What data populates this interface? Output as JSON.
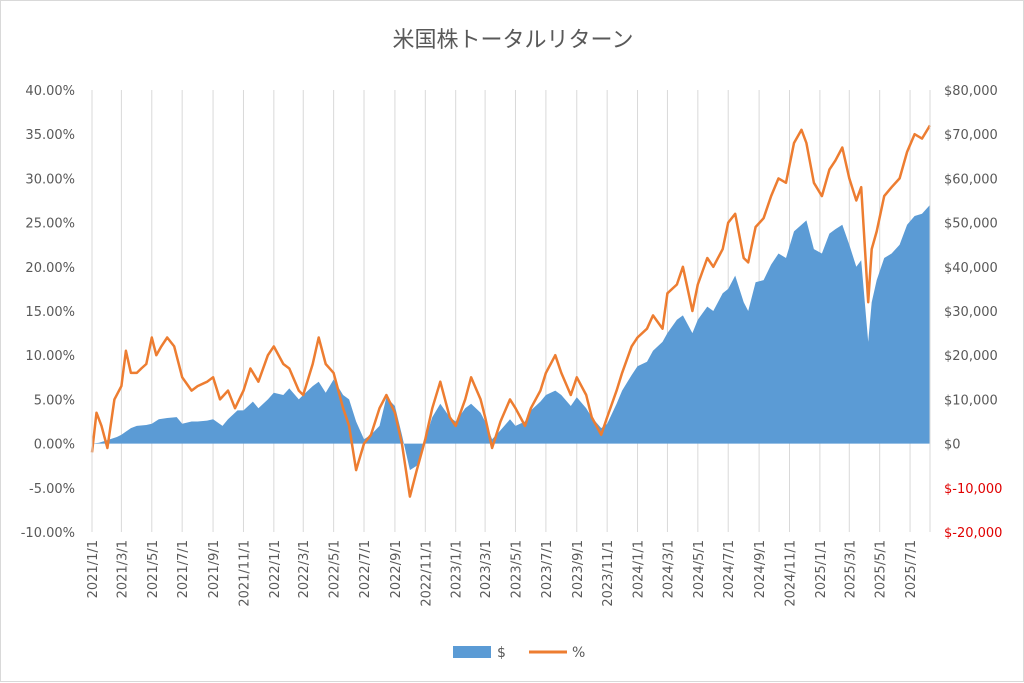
{
  "chart_data": {
    "type": "area+line",
    "title": "米国株トータルリターン",
    "left_axis": {
      "unit": "percent",
      "range": [
        -10,
        40
      ],
      "ticks": [
        -10,
        -5,
        0,
        5,
        10,
        15,
        20,
        25,
        30,
        35,
        40
      ],
      "tick_labels": [
        "-10.00%",
        "-5.00%",
        "0.00%",
        "5.00%",
        "10.00%",
        "15.00%",
        "20.00%",
        "25.00%",
        "30.00%",
        "35.00%",
        "40.00%"
      ]
    },
    "right_axis": {
      "unit": "USD",
      "range": [
        -20000,
        80000
      ],
      "ticks": [
        -20000,
        -10000,
        0,
        10000,
        20000,
        30000,
        40000,
        50000,
        60000,
        70000,
        80000
      ],
      "tick_labels": [
        "$-20,000",
        "$-10,000",
        "$0",
        "$10,000",
        "$20,000",
        "$30,000",
        "$40,000",
        "$50,000",
        "$60,000",
        "$70,000",
        "$80,000"
      ],
      "negative_color": "#e00000"
    },
    "x_axis": {
      "range": [
        "2021/1/1",
        "2025/8/10"
      ],
      "tick_labels": [
        "2021/1/1",
        "2021/3/1",
        "2021/5/1",
        "2021/7/1",
        "2021/9/1",
        "2021/11/1",
        "2022/1/1",
        "2022/3/1",
        "2022/5/1",
        "2022/7/1",
        "2022/9/1",
        "2022/11/1",
        "2023/1/1",
        "2023/3/1",
        "2023/5/1",
        "2023/7/1",
        "2023/9/1",
        "2023/11/1",
        "2024/1/1",
        "2024/3/1",
        "2024/5/1",
        "2024/7/1",
        "2024/9/1",
        "2024/11/1",
        "2025/1/1",
        "2025/3/1",
        "2025/5/1",
        "2025/7/1"
      ]
    },
    "grid": "vertical",
    "legend_position": "bottom",
    "series": [
      {
        "name": "$",
        "type": "area",
        "axis": "right",
        "color": "#5b9bd5",
        "points": [
          [
            "2021/1/1",
            0
          ],
          [
            "2021/1/15",
            200
          ],
          [
            "2021/2/1",
            800
          ],
          [
            "2021/2/20",
            1500
          ],
          [
            "2021/3/1",
            2000
          ],
          [
            "2021/3/20",
            3500
          ],
          [
            "2021/4/1",
            4000
          ],
          [
            "2021/4/20",
            4200
          ],
          [
            "2021/5/1",
            4500
          ],
          [
            "2021/5/15",
            5500
          ],
          [
            "2021/6/1",
            5800
          ],
          [
            "2021/6/20",
            6000
          ],
          [
            "2021/7/1",
            4500
          ],
          [
            "2021/7/20",
            5000
          ],
          [
            "2021/8/1",
            5000
          ],
          [
            "2021/8/20",
            5200
          ],
          [
            "2021/9/1",
            5500
          ],
          [
            "2021/9/20",
            4000
          ],
          [
            "2021/10/1",
            5500
          ],
          [
            "2021/10/20",
            7500
          ],
          [
            "2021/11/1",
            7500
          ],
          [
            "2021/11/20",
            9500
          ],
          [
            "2021/12/1",
            8000
          ],
          [
            "2021/12/20",
            10000
          ],
          [
            "2022/1/1",
            11500
          ],
          [
            "2022/1/20",
            11000
          ],
          [
            "2022/2/1",
            12500
          ],
          [
            "2022/2/20",
            10000
          ],
          [
            "2022/3/1",
            11000
          ],
          [
            "2022/3/20",
            13000
          ],
          [
            "2022/4/1",
            14000
          ],
          [
            "2022/4/15",
            11500
          ],
          [
            "2022/5/1",
            14500
          ],
          [
            "2022/5/20",
            11000
          ],
          [
            "2022/6/1",
            10000
          ],
          [
            "2022/6/15",
            5000
          ],
          [
            "2022/7/1",
            1000
          ],
          [
            "2022/7/15",
            2000
          ],
          [
            "2022/8/1",
            4000
          ],
          [
            "2022/8/15",
            10500
          ],
          [
            "2022/9/1",
            8500
          ],
          [
            "2022/9/15",
            2000
          ],
          [
            "2022/10/1",
            -6000
          ],
          [
            "2022/10/15",
            -5000
          ],
          [
            "2022/11/1",
            1000
          ],
          [
            "2022/11/15",
            6000
          ],
          [
            "2022/12/1",
            9000
          ],
          [
            "2022/12/20",
            6000
          ],
          [
            "2023/1/1",
            5000
          ],
          [
            "2023/1/20",
            8000
          ],
          [
            "2023/2/1",
            9000
          ],
          [
            "2023/2/20",
            7000
          ],
          [
            "2023/3/1",
            5000
          ],
          [
            "2023/3/15",
            1000
          ],
          [
            "2023/4/1",
            3000
          ],
          [
            "2023/4/20",
            5500
          ],
          [
            "2023/5/1",
            4000
          ],
          [
            "2023/5/20",
            5000
          ],
          [
            "2023/6/1",
            7500
          ],
          [
            "2023/6/20",
            9500
          ],
          [
            "2023/7/1",
            11000
          ],
          [
            "2023/7/20",
            12000
          ],
          [
            "2023/8/1",
            11000
          ],
          [
            "2023/8/20",
            8500
          ],
          [
            "2023/9/1",
            10500
          ],
          [
            "2023/9/20",
            8000
          ],
          [
            "2023/10/1",
            6000
          ],
          [
            "2023/10/20",
            3500
          ],
          [
            "2023/11/1",
            4500
          ],
          [
            "2023/11/20",
            9000
          ],
          [
            "2023/12/1",
            12000
          ],
          [
            "2023/12/20",
            15500
          ],
          [
            "2024/1/1",
            17500
          ],
          [
            "2024/1/20",
            18500
          ],
          [
            "2024/2/1",
            21000
          ],
          [
            "2024/2/20",
            23000
          ],
          [
            "2024/3/1",
            25000
          ],
          [
            "2024/3/20",
            28000
          ],
          [
            "2024/4/1",
            29000
          ],
          [
            "2024/4/20",
            25000
          ],
          [
            "2024/5/1",
            28000
          ],
          [
            "2024/5/20",
            31000
          ],
          [
            "2024/6/1",
            30000
          ],
          [
            "2024/6/20",
            34000
          ],
          [
            "2024/7/1",
            35000
          ],
          [
            "2024/7/15",
            38000
          ],
          [
            "2024/8/1",
            32000
          ],
          [
            "2024/8/10",
            30000
          ],
          [
            "2024/8/25",
            36500
          ],
          [
            "2024/9/10",
            37000
          ],
          [
            "2024/9/25",
            40500
          ],
          [
            "2024/10/10",
            43000
          ],
          [
            "2024/10/25",
            42000
          ],
          [
            "2024/11/10",
            48000
          ],
          [
            "2024/11/25",
            49500
          ],
          [
            "2024/12/5",
            50500
          ],
          [
            "2024/12/20",
            44000
          ],
          [
            "2025/1/5",
            43000
          ],
          [
            "2025/1/20",
            47500
          ],
          [
            "2025/2/1",
            48500
          ],
          [
            "2025/2/15",
            49500
          ],
          [
            "2025/3/1",
            45000
          ],
          [
            "2025/3/15",
            40000
          ],
          [
            "2025/3/25",
            41500
          ],
          [
            "2025/4/8",
            23000
          ],
          [
            "2025/4/15",
            32000
          ],
          [
            "2025/4/25",
            37000
          ],
          [
            "2025/5/10",
            42000
          ],
          [
            "2025/5/25",
            43000
          ],
          [
            "2025/6/10",
            45000
          ],
          [
            "2025/6/25",
            49500
          ],
          [
            "2025/7/10",
            51500
          ],
          [
            "2025/7/25",
            52000
          ],
          [
            "2025/8/10",
            54000
          ]
        ]
      },
      {
        "name": "%",
        "type": "line",
        "axis": "left",
        "color": "#ed7d31",
        "points": [
          [
            "2021/1/1",
            -1
          ],
          [
            "2021/1/10",
            3.5
          ],
          [
            "2021/1/20",
            2
          ],
          [
            "2021/2/1",
            -0.5
          ],
          [
            "2021/2/15",
            5
          ],
          [
            "2021/3/1",
            6.5
          ],
          [
            "2021/3/10",
            10.5
          ],
          [
            "2021/3/20",
            8
          ],
          [
            "2021/4/1",
            8
          ],
          [
            "2021/4/10",
            8.5
          ],
          [
            "2021/4/20",
            9
          ],
          [
            "2021/5/1",
            12
          ],
          [
            "2021/5/10",
            10
          ],
          [
            "2021/5/20",
            11
          ],
          [
            "2021/6/1",
            12
          ],
          [
            "2021/6/15",
            11
          ],
          [
            "2021/7/1",
            7.5
          ],
          [
            "2021/7/20",
            6
          ],
          [
            "2021/8/1",
            6.5
          ],
          [
            "2021/8/20",
            7
          ],
          [
            "2021/9/1",
            7.5
          ],
          [
            "2021/9/15",
            5
          ],
          [
            "2021/10/1",
            6
          ],
          [
            "2021/10/15",
            4
          ],
          [
            "2021/11/1",
            6
          ],
          [
            "2021/11/15",
            8.5
          ],
          [
            "2021/12/1",
            7
          ],
          [
            "2021/12/20",
            10
          ],
          [
            "2022/1/1",
            11
          ],
          [
            "2022/1/20",
            9
          ],
          [
            "2022/2/1",
            8.5
          ],
          [
            "2022/2/20",
            6
          ],
          [
            "2022/3/1",
            5.5
          ],
          [
            "2022/3/20",
            9
          ],
          [
            "2022/4/1",
            12
          ],
          [
            "2022/4/15",
            9
          ],
          [
            "2022/5/1",
            8
          ],
          [
            "2022/5/20",
            4
          ],
          [
            "2022/6/1",
            2
          ],
          [
            "2022/6/15",
            -3
          ],
          [
            "2022/7/1",
            0
          ],
          [
            "2022/7/15",
            1
          ],
          [
            "2022/8/1",
            4
          ],
          [
            "2022/8/15",
            5.5
          ],
          [
            "2022/9/1",
            3.5
          ],
          [
            "2022/9/15",
            0
          ],
          [
            "2022/10/1",
            -6
          ],
          [
            "2022/10/15",
            -3
          ],
          [
            "2022/11/1",
            0.5
          ],
          [
            "2022/11/15",
            4
          ],
          [
            "2022/12/1",
            7
          ],
          [
            "2022/12/20",
            3
          ],
          [
            "2023/1/1",
            2
          ],
          [
            "2023/1/20",
            5
          ],
          [
            "2023/2/1",
            7.5
          ],
          [
            "2023/2/20",
            5
          ],
          [
            "2023/3/1",
            3
          ],
          [
            "2023/3/15",
            -0.5
          ],
          [
            "2023/4/1",
            2.5
          ],
          [
            "2023/4/20",
            5
          ],
          [
            "2023/5/1",
            4
          ],
          [
            "2023/5/20",
            2
          ],
          [
            "2023/6/1",
            4
          ],
          [
            "2023/6/20",
            6
          ],
          [
            "2023/7/1",
            8
          ],
          [
            "2023/7/20",
            10
          ],
          [
            "2023/8/1",
            8
          ],
          [
            "2023/8/20",
            5.5
          ],
          [
            "2023/9/1",
            7.5
          ],
          [
            "2023/9/20",
            5.5
          ],
          [
            "2023/10/1",
            3
          ],
          [
            "2023/10/20",
            1
          ],
          [
            "2023/11/1",
            3
          ],
          [
            "2023/11/20",
            6
          ],
          [
            "2023/12/1",
            8
          ],
          [
            "2023/12/20",
            11
          ],
          [
            "2024/1/1",
            12
          ],
          [
            "2024/1/20",
            13
          ],
          [
            "2024/2/1",
            14.5
          ],
          [
            "2024/2/20",
            13
          ],
          [
            "2024/3/1",
            17
          ],
          [
            "2024/3/20",
            18
          ],
          [
            "2024/4/1",
            20
          ],
          [
            "2024/4/20",
            15
          ],
          [
            "2024/5/1",
            18
          ],
          [
            "2024/5/20",
            21
          ],
          [
            "2024/6/1",
            20
          ],
          [
            "2024/6/20",
            22
          ],
          [
            "2024/7/1",
            25
          ],
          [
            "2024/7/15",
            26
          ],
          [
            "2024/8/1",
            21
          ],
          [
            "2024/8/10",
            20.5
          ],
          [
            "2024/8/25",
            24.5
          ],
          [
            "2024/9/10",
            25.5
          ],
          [
            "2024/9/25",
            28
          ],
          [
            "2024/10/10",
            30
          ],
          [
            "2024/10/25",
            29.5
          ],
          [
            "2024/11/10",
            34
          ],
          [
            "2024/11/25",
            35.5
          ],
          [
            "2024/12/5",
            34
          ],
          [
            "2024/12/20",
            29.5
          ],
          [
            "2025/1/5",
            28
          ],
          [
            "2025/1/20",
            31
          ],
          [
            "2025/2/1",
            32
          ],
          [
            "2025/2/15",
            33.5
          ],
          [
            "2025/3/1",
            30
          ],
          [
            "2025/3/15",
            27.5
          ],
          [
            "2025/3/25",
            29
          ],
          [
            "2025/4/8",
            16
          ],
          [
            "2025/4/15",
            22
          ],
          [
            "2025/4/25",
            24
          ],
          [
            "2025/5/10",
            28
          ],
          [
            "2025/5/25",
            29
          ],
          [
            "2025/6/10",
            30
          ],
          [
            "2025/6/25",
            33
          ],
          [
            "2025/7/10",
            35
          ],
          [
            "2025/7/25",
            34.5
          ],
          [
            "2025/8/10",
            36
          ]
        ]
      }
    ]
  },
  "colors": {
    "area": "#5b9bd5",
    "line": "#ed7d31",
    "negative_tick": "#e00000",
    "grid": "#d9d9d9",
    "text": "#595959"
  },
  "legend": {
    "area_label": "$",
    "line_label": "%"
  }
}
